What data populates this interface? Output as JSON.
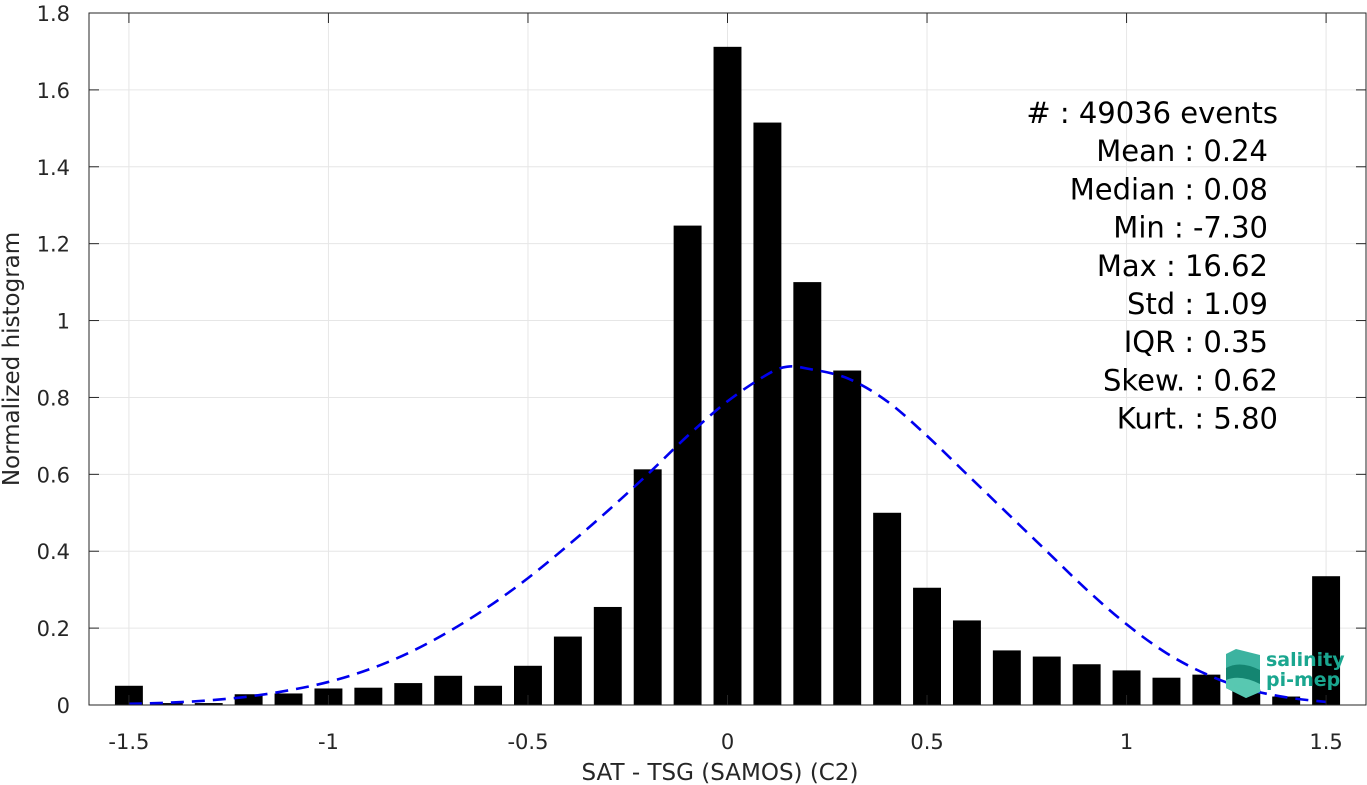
{
  "chart_data": {
    "type": "bar",
    "xlabel": "SAT - TSG (SAMOS) (C2)",
    "ylabel": "Normalized histogram",
    "xlim": [
      -1.6,
      1.6
    ],
    "ylim": [
      0,
      1.8
    ],
    "xticks": [
      -1.5,
      -1,
      -0.5,
      0,
      0.5,
      1,
      1.5
    ],
    "xtick_labels": [
      "-1.5",
      "-1",
      "-0.5",
      "0",
      "0.5",
      "1",
      "1.5"
    ],
    "yticks": [
      0,
      0.2,
      0.4,
      0.6,
      0.8,
      1,
      1.2,
      1.4,
      1.6,
      1.8
    ],
    "ytick_labels": [
      "0",
      "0.2",
      "0.4",
      "0.6",
      "0.8",
      "1",
      "1.2",
      "1.4",
      "1.6",
      "1.8"
    ],
    "grid": true,
    "bar_width": 0.07,
    "bar_color": "#000000",
    "x": [
      -1.5,
      -1.4,
      -1.3,
      -1.2,
      -1.1,
      -1.0,
      -0.9,
      -0.8,
      -0.7,
      -0.6,
      -0.5,
      -0.4,
      -0.3,
      -0.2,
      -0.1,
      0.0,
      0.1,
      0.2,
      0.3,
      0.4,
      0.5,
      0.6,
      0.7,
      0.8,
      0.9,
      1.0,
      1.1,
      1.2,
      1.3,
      1.4,
      1.5
    ],
    "values": [
      0.05,
      0.005,
      0.005,
      0.028,
      0.03,
      0.043,
      0.045,
      0.057,
      0.076,
      0.05,
      0.102,
      0.178,
      0.255,
      0.613,
      1.247,
      1.712,
      1.515,
      1.1,
      0.87,
      0.5,
      0.305,
      0.22,
      0.142,
      0.126,
      0.106,
      0.09,
      0.071,
      0.079,
      0.04,
      0.022,
      0.335
    ],
    "fit_curve": {
      "style": "dashed",
      "color": "#0000ee",
      "x": [
        -1.5,
        -1.4,
        -1.3,
        -1.2,
        -1.1,
        -1.0,
        -0.9,
        -0.8,
        -0.7,
        -0.6,
        -0.5,
        -0.4,
        -0.3,
        -0.2,
        -0.1,
        0.0,
        0.1,
        0.15,
        0.2,
        0.3,
        0.4,
        0.5,
        0.6,
        0.7,
        0.8,
        0.9,
        1.0,
        1.1,
        1.2,
        1.3,
        1.4,
        1.5
      ],
      "y": [
        0.003,
        0.006,
        0.012,
        0.022,
        0.038,
        0.06,
        0.092,
        0.135,
        0.19,
        0.255,
        0.33,
        0.415,
        0.505,
        0.6,
        0.7,
        0.79,
        0.86,
        0.88,
        0.875,
        0.85,
        0.79,
        0.7,
        0.6,
        0.5,
        0.4,
        0.3,
        0.21,
        0.135,
        0.08,
        0.042,
        0.02,
        0.008
      ]
    },
    "stats": [
      {
        "label": "#  : 49036 events",
        "anchor": "end"
      },
      {
        "label": "Mean : 0.24",
        "anchor": "end"
      },
      {
        "label": "Median : 0.08",
        "anchor": "end"
      },
      {
        "label": "Min : -7.30",
        "anchor": "end"
      },
      {
        "label": "Max : 16.62",
        "anchor": "end"
      },
      {
        "label": "Std : 1.09",
        "anchor": "end"
      },
      {
        "label": "IQR : 0.35",
        "anchor": "end"
      },
      {
        "label": "Skew. : 0.62",
        "anchor": "end"
      },
      {
        "label": "Kurt. : 5.80",
        "anchor": "end"
      }
    ]
  },
  "logo": {
    "line1": "salinity",
    "line2": "pi-mep",
    "color": "#1aa68f"
  }
}
